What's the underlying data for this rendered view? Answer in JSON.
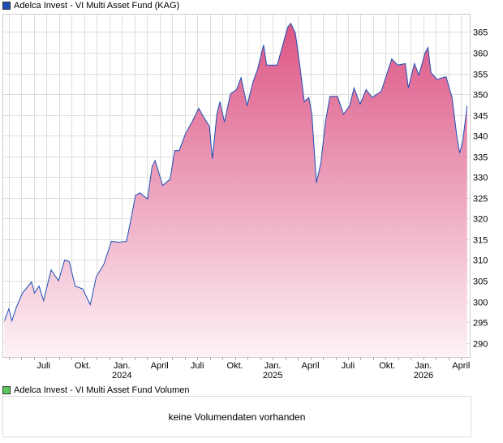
{
  "legend": {
    "price_label": "Adelca Invest - VI Multi Asset Fund (KAG)",
    "price_color": "#1c4fb5",
    "volume_label": "Adelca Invest - VI Multi Asset Fund Volumen",
    "volume_color": "#5cc85c"
  },
  "volume": {
    "empty_message": "keine Volumendaten vorhanden"
  },
  "chart_data": {
    "type": "area",
    "title": "Adelca Invest - VI Multi Asset Fund (KAG)",
    "xlabel": "",
    "ylabel": "",
    "ylim": [
      286.5,
      369.3
    ],
    "xlim": [
      2023.21,
      2026.31
    ],
    "grid": true,
    "legend": "top-left",
    "yticks": [
      290,
      295,
      300,
      305,
      310,
      315,
      320,
      325,
      330,
      335,
      340,
      345,
      350,
      355,
      360,
      365
    ],
    "xticks": [
      {
        "t": 2023.48,
        "label": "Juli",
        "year": ""
      },
      {
        "t": 2023.74,
        "label": "Okt.",
        "year": ""
      },
      {
        "t": 2024.0,
        "label": "Jan.",
        "year": "2024"
      },
      {
        "t": 2024.25,
        "label": "April",
        "year": ""
      },
      {
        "t": 2024.5,
        "label": "Juli",
        "year": ""
      },
      {
        "t": 2024.75,
        "label": "Okt.",
        "year": ""
      },
      {
        "t": 2025.0,
        "label": "Jan.",
        "year": "2025"
      },
      {
        "t": 2025.25,
        "label": "April",
        "year": ""
      },
      {
        "t": 2025.5,
        "label": "Juli",
        "year": ""
      },
      {
        "t": 2025.76,
        "label": "Okt.",
        "year": ""
      },
      {
        "t": 2026.0,
        "label": "Jan.",
        "year": "2026"
      },
      {
        "t": 2026.25,
        "label": "April",
        "year": ""
      }
    ],
    "series": [
      {
        "name": "Adelca Invest - VI Multi Asset Fund (KAG)",
        "points": [
          [
            2023.22,
            295.3
          ],
          [
            2023.25,
            298.2
          ],
          [
            2023.27,
            295.3
          ],
          [
            2023.3,
            298.6
          ],
          [
            2023.34,
            302
          ],
          [
            2023.4,
            304.7
          ],
          [
            2023.42,
            302
          ],
          [
            2023.45,
            303.7
          ],
          [
            2023.48,
            300.2
          ],
          [
            2023.53,
            307.6
          ],
          [
            2023.58,
            305
          ],
          [
            2023.62,
            310
          ],
          [
            2023.65,
            309.6
          ],
          [
            2023.69,
            303.7
          ],
          [
            2023.74,
            303
          ],
          [
            2023.79,
            299.2
          ],
          [
            2023.83,
            306
          ],
          [
            2023.88,
            309
          ],
          [
            2023.93,
            314.5
          ],
          [
            2023.98,
            314.3
          ],
          [
            2024.03,
            314.5
          ],
          [
            2024.06,
            319.8
          ],
          [
            2024.09,
            325.6
          ],
          [
            2024.12,
            326.2
          ],
          [
            2024.17,
            324.7
          ],
          [
            2024.2,
            332.5
          ],
          [
            2024.22,
            334
          ],
          [
            2024.27,
            328
          ],
          [
            2024.32,
            329.5
          ],
          [
            2024.35,
            336.4
          ],
          [
            2024.38,
            336.4
          ],
          [
            2024.42,
            340.3
          ],
          [
            2024.47,
            343.7
          ],
          [
            2024.51,
            346.6
          ],
          [
            2024.54,
            344.6
          ],
          [
            2024.58,
            342.3
          ],
          [
            2024.6,
            334.4
          ],
          [
            2024.63,
            345.2
          ],
          [
            2024.65,
            348.2
          ],
          [
            2024.68,
            343.3
          ],
          [
            2024.72,
            350.1
          ],
          [
            2024.76,
            351.1
          ],
          [
            2024.79,
            354
          ],
          [
            2024.83,
            347.2
          ],
          [
            2024.87,
            353
          ],
          [
            2024.9,
            356
          ],
          [
            2024.94,
            361.9
          ],
          [
            2024.96,
            357
          ],
          [
            2025.03,
            357
          ],
          [
            2025.06,
            360.9
          ],
          [
            2025.1,
            366.2
          ],
          [
            2025.12,
            367.1
          ],
          [
            2025.15,
            364.8
          ],
          [
            2025.18,
            357
          ],
          [
            2025.21,
            348.2
          ],
          [
            2025.24,
            349.2
          ],
          [
            2025.26,
            345.2
          ],
          [
            2025.29,
            328.6
          ],
          [
            2025.32,
            333.5
          ],
          [
            2025.35,
            343.3
          ],
          [
            2025.38,
            349.5
          ],
          [
            2025.43,
            349.5
          ],
          [
            2025.47,
            345.2
          ],
          [
            2025.51,
            347.2
          ],
          [
            2025.54,
            351.5
          ],
          [
            2025.58,
            347.6
          ],
          [
            2025.62,
            351.1
          ],
          [
            2025.66,
            349.2
          ],
          [
            2025.72,
            350.7
          ],
          [
            2025.75,
            354
          ],
          [
            2025.79,
            358.5
          ],
          [
            2025.83,
            357
          ],
          [
            2025.88,
            357.4
          ],
          [
            2025.9,
            351.5
          ],
          [
            2025.94,
            357.4
          ],
          [
            2025.97,
            354.6
          ],
          [
            2026.01,
            359.9
          ],
          [
            2026.03,
            361.3
          ],
          [
            2026.05,
            355.2
          ],
          [
            2026.09,
            353.6
          ],
          [
            2026.15,
            354.2
          ],
          [
            2026.19,
            349.2
          ],
          [
            2026.22,
            340.3
          ],
          [
            2026.24,
            335.8
          ],
          [
            2026.26,
            338.4
          ],
          [
            2026.29,
            347.2
          ]
        ]
      }
    ]
  }
}
